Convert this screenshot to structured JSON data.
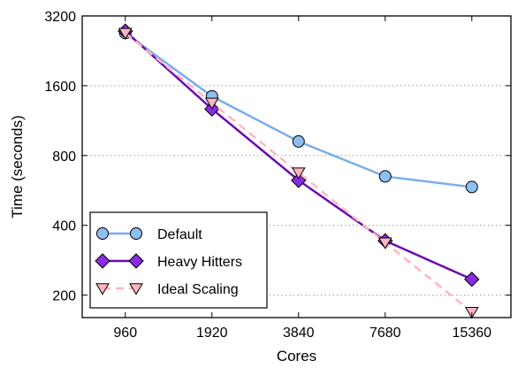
{
  "chart_data": {
    "type": "line",
    "xlabel": "Cores",
    "ylabel": "Time (seconds)",
    "x_scale": "log2",
    "y_scale": "log2",
    "x_ticks": [
      960,
      1920,
      3840,
      7680,
      15360
    ],
    "x_tick_labels": [
      "960",
      "1920",
      "3840",
      "7680",
      "15360"
    ],
    "y_ticks": [
      200,
      400,
      800,
      1600,
      3200
    ],
    "y_tick_labels": [
      "200",
      "400",
      "800",
      "1600",
      "3200"
    ],
    "xlim": [
      680,
      21000
    ],
    "ylim": [
      160,
      3200
    ],
    "grid": "horizontal dotted",
    "legend_position": "bottom-left",
    "series": [
      {
        "name": "Default",
        "marker": "circle",
        "line_style": "solid",
        "color": "#7aaee8",
        "marker_fill": "#8fbff0",
        "x": [
          960,
          1920,
          3840,
          7680,
          15360
        ],
        "y": [
          2700,
          1440,
          920,
          650,
          585
        ]
      },
      {
        "name": "Heavy Hitters",
        "marker": "diamond",
        "line_style": "solid",
        "color": "#6a0dad",
        "marker_fill": "#8a2be2",
        "x": [
          960,
          1920,
          3840,
          7680,
          15360
        ],
        "y": [
          2750,
          1270,
          625,
          343,
          234
        ]
      },
      {
        "name": "Ideal Scaling",
        "marker": "triangle-down",
        "line_style": "dashed",
        "color": "#ffb6c1",
        "marker_fill": "#ffb6c1",
        "x": [
          960,
          1920,
          3840,
          7680,
          15360
        ],
        "y": [
          2700,
          1350,
          675,
          337,
          169
        ]
      }
    ]
  }
}
